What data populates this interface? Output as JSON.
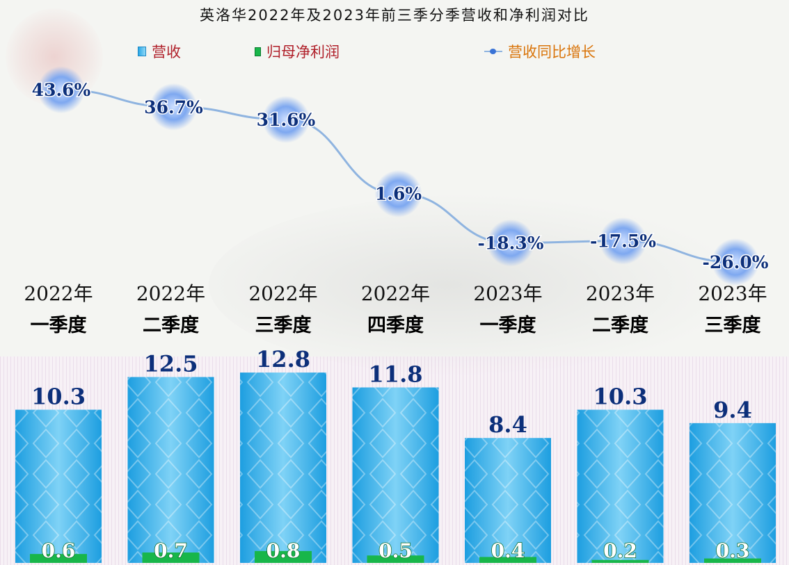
{
  "chart_data": {
    "type": "bar",
    "title": "英洛华2022年及2023年前三季分季营收和净利润对比",
    "categories": [
      [
        "2022年",
        "一季度"
      ],
      [
        "2022年",
        "二季度"
      ],
      [
        "2022年",
        "三季度"
      ],
      [
        "2022年",
        "四季度"
      ],
      [
        "2023年",
        "一季度"
      ],
      [
        "2023年",
        "二季度"
      ],
      [
        "2023年",
        "三季度"
      ]
    ],
    "series": [
      {
        "name": "营收",
        "type": "bar",
        "values": [
          10.3,
          12.5,
          12.8,
          11.8,
          8.4,
          10.3,
          9.4
        ],
        "color": "#2aa8e6"
      },
      {
        "name": "归母净利润",
        "type": "bar",
        "values": [
          0.6,
          0.7,
          0.8,
          0.5,
          0.4,
          0.2,
          0.3
        ],
        "color": "#18b64a"
      },
      {
        "name": "营收同比增长",
        "type": "line",
        "values": [
          43.6,
          36.7,
          31.6,
          1.6,
          -18.3,
          -17.5,
          -26.0
        ],
        "labels": [
          "43.6%",
          "36.7%",
          "31.6%",
          "1.6%",
          "-18.3%",
          "-17.5%",
          "-26.0%"
        ],
        "color": "#8fb4e0"
      }
    ],
    "legend_position": "top",
    "grid": false
  },
  "colors": {
    "legend_revenue_text": "#b0202a",
    "legend_np_text": "#b0202a",
    "legend_growth_text": "#d9740a"
  }
}
